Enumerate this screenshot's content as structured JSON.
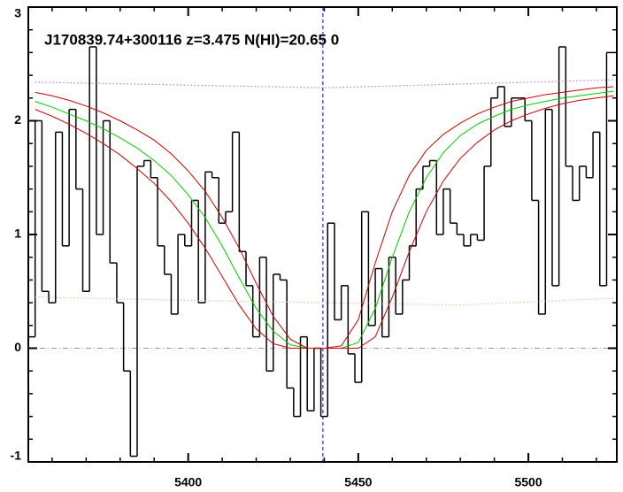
{
  "chart_data": {
    "type": "line",
    "title": "J170839.74+300116 z=3.475 N(HI)=20.65 0",
    "xlim": [
      5353,
      5526
    ],
    "ylim": [
      -1,
      3
    ],
    "xticks": [
      5400,
      5450,
      5500
    ],
    "yticks": [
      -1,
      0,
      1,
      2,
      3
    ],
    "xminorticks": [
      5360,
      5370,
      5380,
      5390,
      5410,
      5420,
      5430,
      5440,
      5460,
      5470,
      5480,
      5490,
      5510,
      5520
    ],
    "yminorticks": [
      -0.8,
      -0.6,
      -0.4,
      -0.2,
      0.2,
      0.4,
      0.6,
      0.8,
      1.2,
      1.4,
      1.6,
      1.8,
      2.2,
      2.4,
      2.6,
      2.8
    ],
    "vline": {
      "x": 5439.6,
      "color": "#0000cc"
    },
    "hline": {
      "y": 0,
      "color": "#999999"
    },
    "series": [
      {
        "color": "#000000",
        "step": true,
        "x": [
          5354,
          5356,
          5358,
          5360,
          5362,
          5364,
          5366,
          5368,
          5370,
          5372,
          5374,
          5376,
          5378,
          5380,
          5382,
          5384,
          5386,
          5388,
          5390,
          5392,
          5394,
          5396,
          5398,
          5400,
          5402,
          5404,
          5406,
          5408,
          5410,
          5412,
          5414,
          5416,
          5418,
          5420,
          5422,
          5424,
          5426,
          5428,
          5430,
          5432,
          5434,
          5436,
          5438,
          5440,
          5442,
          5444,
          5446,
          5448,
          5450,
          5452,
          5454,
          5456,
          5458,
          5460,
          5462,
          5464,
          5466,
          5468,
          5470,
          5472,
          5474,
          5476,
          5478,
          5480,
          5482,
          5484,
          5486,
          5488,
          5490,
          5492,
          5494,
          5496,
          5498,
          5500,
          5502,
          5504,
          5506,
          5508,
          5510,
          5512,
          5514,
          5516,
          5518,
          5520,
          5522,
          5524
        ],
        "values": [
          0.1,
          2.0,
          0.5,
          0.4,
          1.9,
          0.9,
          2.1,
          1.4,
          0.5,
          2.65,
          1.0,
          2.0,
          0.75,
          0.4,
          -0.2,
          -0.95,
          1.6,
          1.65,
          1.5,
          0.9,
          0.65,
          0.3,
          1.0,
          0.9,
          1.3,
          0.4,
          1.55,
          1.5,
          1.1,
          1.2,
          1.9,
          0.85,
          0.55,
          0.1,
          0.8,
          -0.2,
          0.65,
          0.6,
          -0.35,
          -0.6,
          0.1,
          -0.55,
          0.0,
          -0.6,
          1.1,
          0.25,
          0.55,
          -0.05,
          -0.3,
          1.2,
          0.2,
          0.7,
          0.1,
          0.8,
          0.3,
          0.6,
          0.9,
          1.4,
          1.6,
          1.65,
          1.0,
          1.4,
          1.1,
          1.0,
          0.9,
          1.0,
          0.95,
          1.6,
          2.2,
          2.3,
          1.95,
          2.2,
          2.2,
          2.0,
          1.3,
          0.3,
          2.1,
          0.55,
          2.65,
          1.6,
          1.3,
          1.6,
          1.5,
          1.9,
          0.55,
          2.6
        ]
      },
      {
        "color": "#00cc00",
        "step": false,
        "x": [
          5355,
          5360,
          5365,
          5370,
          5375,
          5380,
          5385,
          5390,
          5395,
          5400,
          5405,
          5410,
          5415,
          5420,
          5425,
          5430,
          5435,
          5440,
          5445,
          5450,
          5455,
          5460,
          5465,
          5470,
          5475,
          5480,
          5485,
          5490,
          5495,
          5500,
          5505,
          5510,
          5515,
          5520,
          5525
        ],
        "values": [
          2.17,
          2.12,
          2.06,
          2.0,
          1.93,
          1.85,
          1.76,
          1.65,
          1.52,
          1.35,
          1.15,
          0.9,
          0.62,
          0.35,
          0.15,
          0.03,
          0,
          0,
          0,
          0.05,
          0.35,
          0.8,
          1.2,
          1.5,
          1.72,
          1.87,
          1.97,
          2.04,
          2.1,
          2.14,
          2.17,
          2.2,
          2.22,
          2.24,
          2.26
        ]
      },
      {
        "color": "#cc0000",
        "step": false,
        "x": [
          5355,
          5360,
          5365,
          5370,
          5375,
          5380,
          5385,
          5390,
          5395,
          5400,
          5405,
          5410,
          5415,
          5420,
          5425,
          5430,
          5435,
          5440,
          5445,
          5450,
          5455,
          5460,
          5465,
          5470,
          5475,
          5480,
          5485,
          5490,
          5495,
          5500,
          5505,
          5510,
          5515,
          5520,
          5525
        ],
        "values": [
          2.25,
          2.22,
          2.18,
          2.13,
          2.07,
          2.0,
          1.92,
          1.83,
          1.71,
          1.56,
          1.38,
          1.15,
          0.88,
          0.57,
          0.28,
          0.08,
          0,
          0,
          0.02,
          0.25,
          0.75,
          1.2,
          1.52,
          1.74,
          1.88,
          1.98,
          2.06,
          2.12,
          2.17,
          2.2,
          2.23,
          2.25,
          2.27,
          2.29,
          2.3
        ]
      },
      {
        "color": "#cc0000",
        "step": false,
        "x": [
          5355,
          5360,
          5365,
          5370,
          5375,
          5380,
          5385,
          5390,
          5395,
          5400,
          5405,
          5410,
          5415,
          5420,
          5425,
          5430,
          5435,
          5440,
          5445,
          5450,
          5455,
          5460,
          5465,
          5470,
          5475,
          5480,
          5485,
          5490,
          5495,
          5500,
          5505,
          5510,
          5515,
          5520,
          5525
        ],
        "values": [
          2.1,
          2.04,
          1.97,
          1.89,
          1.8,
          1.7,
          1.58,
          1.45,
          1.29,
          1.1,
          0.88,
          0.63,
          0.38,
          0.17,
          0.04,
          0,
          0,
          0,
          0,
          0,
          0.1,
          0.45,
          0.85,
          1.2,
          1.47,
          1.67,
          1.81,
          1.92,
          2.0,
          2.06,
          2.11,
          2.15,
          2.18,
          2.2,
          2.22
        ]
      },
      {
        "color": "#9933ff",
        "step": false,
        "dotted": true,
        "x": [
          5355,
          5440,
          5525
        ],
        "values": [
          2.34,
          2.29,
          2.36
        ]
      },
      {
        "color": "#ff9955",
        "step": false,
        "dotted": true,
        "x": [
          5355,
          5400,
          5440,
          5480,
          5525
        ],
        "values": [
          0.45,
          0.42,
          0.4,
          0.38,
          0.44
        ]
      }
    ]
  }
}
